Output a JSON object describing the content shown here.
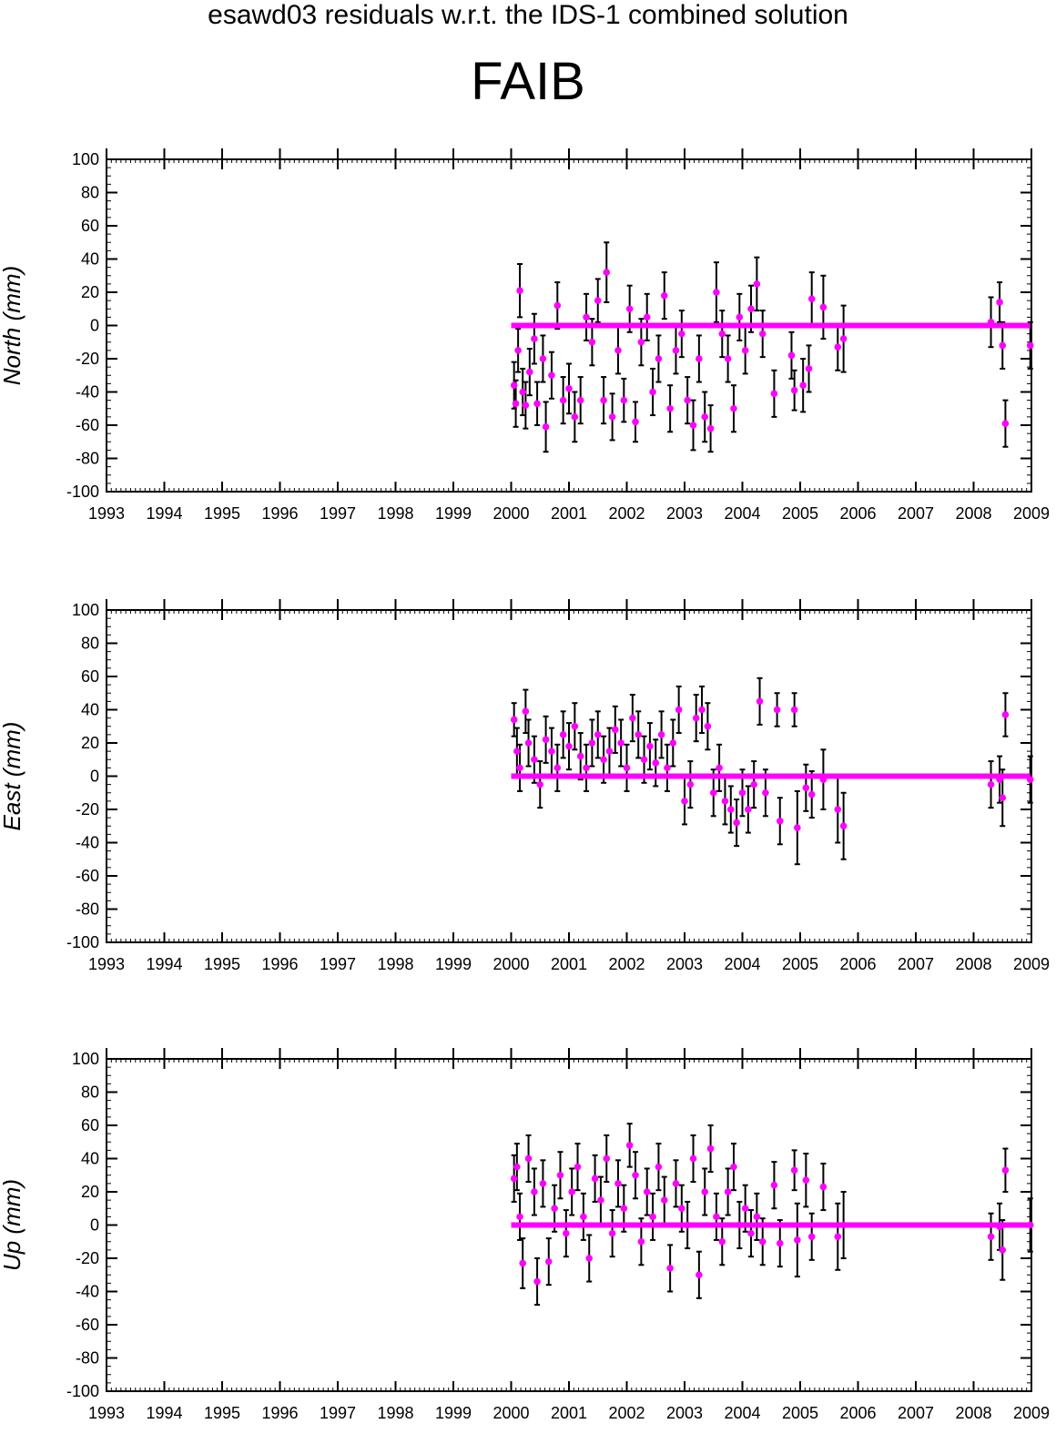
{
  "title": "esawd03 residuals w.r.t. the IDS-1 combined solution",
  "station": "FAIB",
  "colors": {
    "points": "#ff00ff",
    "zero_line": "#ff00ff",
    "error_bars": "#000000"
  },
  "chart_data": [
    {
      "type": "scatter",
      "ylabel": "North (mm)",
      "xlim": [
        1993,
        2009
      ],
      "ylim": [
        -100,
        100
      ],
      "x_ticks": [
        "1993",
        "1994",
        "1995",
        "1996",
        "1997",
        "1998",
        "1999",
        "2000",
        "2001",
        "2002",
        "2003",
        "2004",
        "2005",
        "2006",
        "2007",
        "2008",
        "2009"
      ],
      "y_ticks": [
        "100",
        "80",
        "60",
        "40",
        "20",
        "0",
        "-20",
        "-40",
        "-60",
        "-80",
        "-100"
      ],
      "zero_line": {
        "y": 0,
        "x_range": [
          2000.0,
          2008.98
        ]
      },
      "points": [
        {
          "x": 2000.05,
          "y": -36,
          "err": 14
        },
        {
          "x": 2000.08,
          "y": -47,
          "err": 14
        },
        {
          "x": 2000.12,
          "y": -15,
          "err": 13
        },
        {
          "x": 2000.15,
          "y": 21,
          "err": 16
        },
        {
          "x": 2000.2,
          "y": -40,
          "err": 14
        },
        {
          "x": 2000.25,
          "y": -48,
          "err": 14
        },
        {
          "x": 2000.32,
          "y": -28,
          "err": 14
        },
        {
          "x": 2000.4,
          "y": -8,
          "err": 15
        },
        {
          "x": 2000.45,
          "y": -47,
          "err": 13
        },
        {
          "x": 2000.55,
          "y": -20,
          "err": 14
        },
        {
          "x": 2000.6,
          "y": -61,
          "err": 15
        },
        {
          "x": 2000.7,
          "y": -30,
          "err": 14
        },
        {
          "x": 2000.8,
          "y": 12,
          "err": 14
        },
        {
          "x": 2000.9,
          "y": -45,
          "err": 14
        },
        {
          "x": 2001.0,
          "y": -38,
          "err": 15
        },
        {
          "x": 2001.1,
          "y": -55,
          "err": 15
        },
        {
          "x": 2001.2,
          "y": -45,
          "err": 14
        },
        {
          "x": 2001.3,
          "y": 5,
          "err": 14
        },
        {
          "x": 2001.4,
          "y": -10,
          "err": 14
        },
        {
          "x": 2001.5,
          "y": 15,
          "err": 13
        },
        {
          "x": 2001.6,
          "y": -45,
          "err": 14
        },
        {
          "x": 2001.65,
          "y": 32,
          "err": 18
        },
        {
          "x": 2001.75,
          "y": -55,
          "err": 14
        },
        {
          "x": 2001.85,
          "y": -15,
          "err": 14
        },
        {
          "x": 2001.95,
          "y": -45,
          "err": 13
        },
        {
          "x": 2002.05,
          "y": 10,
          "err": 14
        },
        {
          "x": 2002.15,
          "y": -58,
          "err": 12
        },
        {
          "x": 2002.25,
          "y": -10,
          "err": 14
        },
        {
          "x": 2002.35,
          "y": 5,
          "err": 14
        },
        {
          "x": 2002.45,
          "y": -40,
          "err": 14
        },
        {
          "x": 2002.55,
          "y": -20,
          "err": 14
        },
        {
          "x": 2002.65,
          "y": 18,
          "err": 14
        },
        {
          "x": 2002.75,
          "y": -50,
          "err": 14
        },
        {
          "x": 2002.85,
          "y": -15,
          "err": 14
        },
        {
          "x": 2002.95,
          "y": -5,
          "err": 14
        },
        {
          "x": 2003.05,
          "y": -45,
          "err": 14
        },
        {
          "x": 2003.15,
          "y": -60,
          "err": 15
        },
        {
          "x": 2003.25,
          "y": -20,
          "err": 14
        },
        {
          "x": 2003.35,
          "y": -55,
          "err": 15
        },
        {
          "x": 2003.45,
          "y": -62,
          "err": 14
        },
        {
          "x": 2003.55,
          "y": 20,
          "err": 18
        },
        {
          "x": 2003.65,
          "y": -5,
          "err": 14
        },
        {
          "x": 2003.75,
          "y": -20,
          "err": 14
        },
        {
          "x": 2003.85,
          "y": -50,
          "err": 14
        },
        {
          "x": 2003.95,
          "y": 5,
          "err": 14
        },
        {
          "x": 2004.05,
          "y": -15,
          "err": 14
        },
        {
          "x": 2004.15,
          "y": 10,
          "err": 14
        },
        {
          "x": 2004.25,
          "y": 25,
          "err": 16
        },
        {
          "x": 2004.35,
          "y": -5,
          "err": 14
        },
        {
          "x": 2004.55,
          "y": -41,
          "err": 14
        },
        {
          "x": 2004.85,
          "y": -18,
          "err": 14
        },
        {
          "x": 2004.9,
          "y": -39,
          "err": 12
        },
        {
          "x": 2005.05,
          "y": -36,
          "err": 16
        },
        {
          "x": 2005.15,
          "y": -26,
          "err": 14
        },
        {
          "x": 2005.2,
          "y": 16,
          "err": 16
        },
        {
          "x": 2005.4,
          "y": 11,
          "err": 19
        },
        {
          "x": 2005.65,
          "y": -13,
          "err": 14
        },
        {
          "x": 2005.75,
          "y": -8,
          "err": 20
        },
        {
          "x": 2008.3,
          "y": 2,
          "err": 15
        },
        {
          "x": 2008.45,
          "y": 14,
          "err": 12
        },
        {
          "x": 2008.5,
          "y": -12,
          "err": 14
        },
        {
          "x": 2008.55,
          "y": -59,
          "err": 14
        },
        {
          "x": 2008.98,
          "y": -12,
          "err": 14
        }
      ]
    },
    {
      "type": "scatter",
      "ylabel": "East (mm)",
      "xlim": [
        1993,
        2009
      ],
      "ylim": [
        -100,
        100
      ],
      "x_ticks": [
        "1993",
        "1994",
        "1995",
        "1996",
        "1997",
        "1998",
        "1999",
        "2000",
        "2001",
        "2002",
        "2003",
        "2004",
        "2005",
        "2006",
        "2007",
        "2008",
        "2009"
      ],
      "y_ticks": [
        "100",
        "80",
        "60",
        "40",
        "20",
        "0",
        "-20",
        "-40",
        "-60",
        "-80",
        "-100"
      ],
      "zero_line": {
        "y": 0,
        "x_range": [
          2000.0,
          2008.98
        ]
      },
      "points": [
        {
          "x": 2000.05,
          "y": 34,
          "err": 10
        },
        {
          "x": 2000.1,
          "y": 15,
          "err": 14
        },
        {
          "x": 2000.15,
          "y": 5,
          "err": 14
        },
        {
          "x": 2000.25,
          "y": 39,
          "err": 13
        },
        {
          "x": 2000.3,
          "y": 20,
          "err": 14
        },
        {
          "x": 2000.4,
          "y": 10,
          "err": 14
        },
        {
          "x": 2000.5,
          "y": -5,
          "err": 14
        },
        {
          "x": 2000.6,
          "y": 22,
          "err": 14
        },
        {
          "x": 2000.7,
          "y": 15,
          "err": 14
        },
        {
          "x": 2000.8,
          "y": 5,
          "err": 14
        },
        {
          "x": 2000.9,
          "y": 25,
          "err": 14
        },
        {
          "x": 2001.0,
          "y": 18,
          "err": 14
        },
        {
          "x": 2001.1,
          "y": 30,
          "err": 14
        },
        {
          "x": 2001.2,
          "y": 12,
          "err": 14
        },
        {
          "x": 2001.3,
          "y": 5,
          "err": 14
        },
        {
          "x": 2001.4,
          "y": 20,
          "err": 14
        },
        {
          "x": 2001.5,
          "y": 25,
          "err": 14
        },
        {
          "x": 2001.6,
          "y": 10,
          "err": 14
        },
        {
          "x": 2001.7,
          "y": 15,
          "err": 14
        },
        {
          "x": 2001.8,
          "y": 28,
          "err": 14
        },
        {
          "x": 2001.9,
          "y": 20,
          "err": 14
        },
        {
          "x": 2002.0,
          "y": 5,
          "err": 14
        },
        {
          "x": 2002.1,
          "y": 35,
          "err": 14
        },
        {
          "x": 2002.2,
          "y": 25,
          "err": 14
        },
        {
          "x": 2002.3,
          "y": 10,
          "err": 14
        },
        {
          "x": 2002.4,
          "y": 18,
          "err": 14
        },
        {
          "x": 2002.5,
          "y": 8,
          "err": 14
        },
        {
          "x": 2002.6,
          "y": 25,
          "err": 14
        },
        {
          "x": 2002.7,
          "y": 5,
          "err": 14
        },
        {
          "x": 2002.8,
          "y": 20,
          "err": 14
        },
        {
          "x": 2002.9,
          "y": 40,
          "err": 14
        },
        {
          "x": 2003.0,
          "y": -15,
          "err": 14
        },
        {
          "x": 2003.1,
          "y": -5,
          "err": 14
        },
        {
          "x": 2003.2,
          "y": 35,
          "err": 14
        },
        {
          "x": 2003.3,
          "y": 40,
          "err": 14
        },
        {
          "x": 2003.4,
          "y": 30,
          "err": 14
        },
        {
          "x": 2003.5,
          "y": -10,
          "err": 14
        },
        {
          "x": 2003.6,
          "y": 5,
          "err": 14
        },
        {
          "x": 2003.7,
          "y": -15,
          "err": 14
        },
        {
          "x": 2003.8,
          "y": -20,
          "err": 14
        },
        {
          "x": 2003.9,
          "y": -28,
          "err": 14
        },
        {
          "x": 2004.0,
          "y": -10,
          "err": 14
        },
        {
          "x": 2004.1,
          "y": -20,
          "err": 14
        },
        {
          "x": 2004.2,
          "y": -5,
          "err": 14
        },
        {
          "x": 2004.3,
          "y": 45,
          "err": 14
        },
        {
          "x": 2004.4,
          "y": -10,
          "err": 14
        },
        {
          "x": 2004.6,
          "y": 40,
          "err": 10
        },
        {
          "x": 2004.65,
          "y": -27,
          "err": 14
        },
        {
          "x": 2004.9,
          "y": 40,
          "err": 10
        },
        {
          "x": 2004.95,
          "y": -31,
          "err": 22
        },
        {
          "x": 2005.1,
          "y": -7,
          "err": 14
        },
        {
          "x": 2005.2,
          "y": -11,
          "err": 14
        },
        {
          "x": 2005.4,
          "y": -2,
          "err": 18
        },
        {
          "x": 2005.65,
          "y": -20,
          "err": 20
        },
        {
          "x": 2005.75,
          "y": -30,
          "err": 20
        },
        {
          "x": 2008.3,
          "y": -5,
          "err": 14
        },
        {
          "x": 2008.45,
          "y": -2,
          "err": 14
        },
        {
          "x": 2008.5,
          "y": -13,
          "err": 17
        },
        {
          "x": 2008.55,
          "y": 37,
          "err": 13
        },
        {
          "x": 2008.98,
          "y": -2,
          "err": 14
        }
      ]
    },
    {
      "type": "scatter",
      "ylabel": "Up (mm)",
      "xlim": [
        1993,
        2009
      ],
      "ylim": [
        -100,
        100
      ],
      "x_ticks": [
        "1993",
        "1994",
        "1995",
        "1996",
        "1997",
        "1998",
        "1999",
        "2000",
        "2001",
        "2002",
        "2003",
        "2004",
        "2005",
        "2006",
        "2007",
        "2008",
        "2009"
      ],
      "y_ticks": [
        "100",
        "80",
        "60",
        "40",
        "20",
        "0",
        "-20",
        "-40",
        "-60",
        "-80",
        "-100"
      ],
      "zero_line": {
        "y": 0,
        "x_range": [
          2000.0,
          2008.98
        ]
      },
      "points": [
        {
          "x": 2000.05,
          "y": 28,
          "err": 14
        },
        {
          "x": 2000.1,
          "y": 35,
          "err": 14
        },
        {
          "x": 2000.15,
          "y": 5,
          "err": 14
        },
        {
          "x": 2000.2,
          "y": -23,
          "err": 15
        },
        {
          "x": 2000.3,
          "y": 40,
          "err": 14
        },
        {
          "x": 2000.4,
          "y": 20,
          "err": 14
        },
        {
          "x": 2000.45,
          "y": -34,
          "err": 14
        },
        {
          "x": 2000.55,
          "y": 25,
          "err": 14
        },
        {
          "x": 2000.65,
          "y": -22,
          "err": 14
        },
        {
          "x": 2000.75,
          "y": 10,
          "err": 14
        },
        {
          "x": 2000.85,
          "y": 30,
          "err": 14
        },
        {
          "x": 2000.95,
          "y": -5,
          "err": 14
        },
        {
          "x": 2001.05,
          "y": 20,
          "err": 14
        },
        {
          "x": 2001.15,
          "y": 35,
          "err": 14
        },
        {
          "x": 2001.25,
          "y": 5,
          "err": 14
        },
        {
          "x": 2001.35,
          "y": -20,
          "err": 14
        },
        {
          "x": 2001.45,
          "y": 28,
          "err": 14
        },
        {
          "x": 2001.55,
          "y": 15,
          "err": 14
        },
        {
          "x": 2001.65,
          "y": 40,
          "err": 14
        },
        {
          "x": 2001.75,
          "y": -5,
          "err": 14
        },
        {
          "x": 2001.85,
          "y": 25,
          "err": 14
        },
        {
          "x": 2001.95,
          "y": 10,
          "err": 14
        },
        {
          "x": 2002.05,
          "y": 48,
          "err": 13
        },
        {
          "x": 2002.15,
          "y": 30,
          "err": 14
        },
        {
          "x": 2002.25,
          "y": -10,
          "err": 14
        },
        {
          "x": 2002.35,
          "y": 20,
          "err": 14
        },
        {
          "x": 2002.45,
          "y": 5,
          "err": 14
        },
        {
          "x": 2002.55,
          "y": 35,
          "err": 14
        },
        {
          "x": 2002.65,
          "y": 15,
          "err": 14
        },
        {
          "x": 2002.75,
          "y": -26,
          "err": 14
        },
        {
          "x": 2002.85,
          "y": 25,
          "err": 14
        },
        {
          "x": 2002.95,
          "y": 10,
          "err": 14
        },
        {
          "x": 2003.05,
          "y": 0,
          "err": 14
        },
        {
          "x": 2003.15,
          "y": 40,
          "err": 14
        },
        {
          "x": 2003.25,
          "y": -30,
          "err": 14
        },
        {
          "x": 2003.35,
          "y": 20,
          "err": 14
        },
        {
          "x": 2003.45,
          "y": 46,
          "err": 14
        },
        {
          "x": 2003.55,
          "y": 5,
          "err": 14
        },
        {
          "x": 2003.65,
          "y": -10,
          "err": 14
        },
        {
          "x": 2003.75,
          "y": 20,
          "err": 14
        },
        {
          "x": 2003.85,
          "y": 35,
          "err": 14
        },
        {
          "x": 2003.95,
          "y": 0,
          "err": 14
        },
        {
          "x": 2004.05,
          "y": 10,
          "err": 14
        },
        {
          "x": 2004.15,
          "y": -5,
          "err": 14
        },
        {
          "x": 2004.25,
          "y": 5,
          "err": 14
        },
        {
          "x": 2004.35,
          "y": -10,
          "err": 14
        },
        {
          "x": 2004.55,
          "y": 24,
          "err": 14
        },
        {
          "x": 2004.65,
          "y": -11,
          "err": 14
        },
        {
          "x": 2004.9,
          "y": 33,
          "err": 12
        },
        {
          "x": 2004.95,
          "y": -9,
          "err": 22
        },
        {
          "x": 2005.1,
          "y": 27,
          "err": 16
        },
        {
          "x": 2005.2,
          "y": -7,
          "err": 14
        },
        {
          "x": 2005.4,
          "y": 23,
          "err": 14
        },
        {
          "x": 2005.65,
          "y": -7,
          "err": 20
        },
        {
          "x": 2005.75,
          "y": 0,
          "err": 20
        },
        {
          "x": 2008.3,
          "y": -7,
          "err": 14
        },
        {
          "x": 2008.45,
          "y": -1,
          "err": 14
        },
        {
          "x": 2008.5,
          "y": -15,
          "err": 18
        },
        {
          "x": 2008.55,
          "y": 33,
          "err": 13
        },
        {
          "x": 2008.98,
          "y": 0,
          "err": 16
        }
      ]
    }
  ]
}
